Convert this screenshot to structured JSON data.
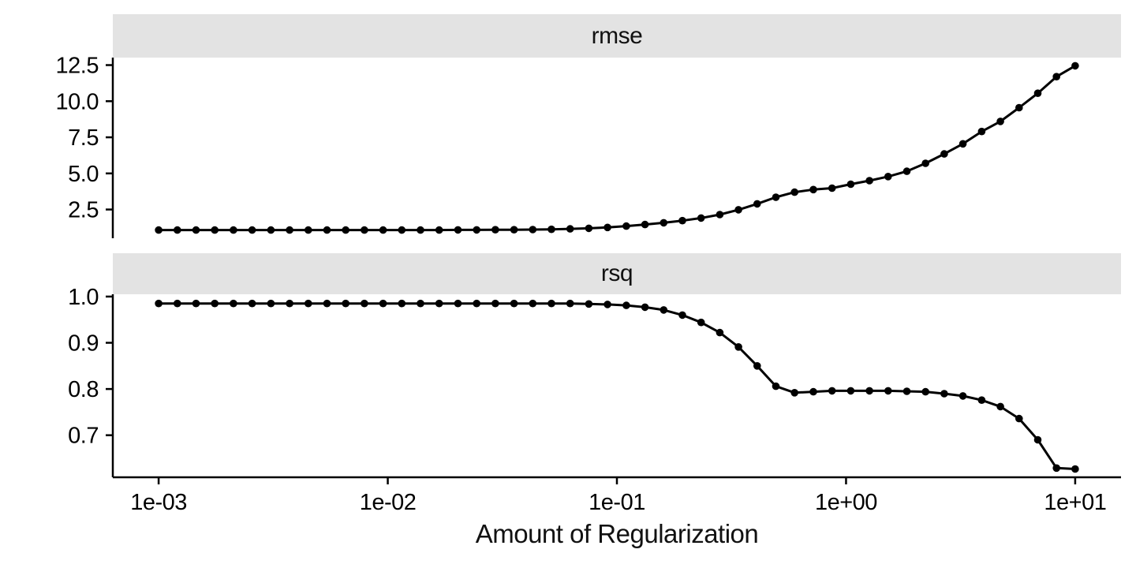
{
  "figure": {
    "background": "#ffffff",
    "strip_bg": "#e3e3e3",
    "geom_color": "#000000",
    "axis_color": "#000000",
    "text_color": "#000000"
  },
  "chart_data": {
    "type": "line",
    "title": "",
    "xlabel": "Amount of Regularization",
    "ylabel": "",
    "grid": false,
    "legend": "none",
    "x_scale": "log10",
    "x_domain_log10": [
      -3.2,
      1.2
    ],
    "x_ticks": [
      {
        "value": 0.001,
        "label": "1e-03"
      },
      {
        "value": 0.01,
        "label": "1e-02"
      },
      {
        "value": 0.1,
        "label": "1e-01"
      },
      {
        "value": 1,
        "label": "1e+00"
      },
      {
        "value": 10,
        "label": "1e+01"
      }
    ],
    "facets": [
      {
        "name": "rmse",
        "ylim": [
          0.51,
          13.02
        ],
        "y_ticks": [
          {
            "value": 2.5,
            "label": "2.5"
          },
          {
            "value": 5,
            "label": "5.0"
          },
          {
            "value": 7.5,
            "label": "7.5"
          },
          {
            "value": 10,
            "label": "10.0"
          },
          {
            "value": 12.5,
            "label": "12.5"
          }
        ]
      },
      {
        "name": "rsq",
        "ylim": [
          0.609,
          1.005
        ],
        "y_ticks": [
          {
            "value": 0.7,
            "label": "0.7"
          },
          {
            "value": 0.8,
            "label": "0.8"
          },
          {
            "value": 0.9,
            "label": "0.9"
          },
          {
            "value": 1.0,
            "label": "1.0"
          }
        ]
      }
    ],
    "x": [
      0.001,
      0.0012068,
      0.0014563,
      0.0017575,
      0.002121,
      0.0025595,
      0.0030888,
      0.0037276,
      0.0044984,
      0.0054287,
      0.0065513,
      0.007906,
      0.009541,
      0.011514,
      0.013895,
      0.016768,
      0.020236,
      0.024421,
      0.029471,
      0.035565,
      0.042919,
      0.051795,
      0.062506,
      0.075431,
      0.09103,
      0.10985,
      0.13257,
      0.15998,
      0.19307,
      0.233,
      0.28118,
      0.33932,
      0.40949,
      0.49417,
      0.59636,
      0.71969,
      0.86851,
      1.0481,
      1.2648,
      1.5264,
      1.8421,
      2.223,
      2.6827,
      3.2375,
      3.9069,
      4.7149,
      5.6899,
      6.8665,
      8.2864,
      10
    ],
    "series": [
      {
        "name": "rmse",
        "values": [
          1.08,
          1.08,
          1.08,
          1.08,
          1.08,
          1.08,
          1.08,
          1.08,
          1.08,
          1.08,
          1.08,
          1.08,
          1.08,
          1.08,
          1.08,
          1.08,
          1.09,
          1.09,
          1.1,
          1.1,
          1.11,
          1.13,
          1.16,
          1.2,
          1.26,
          1.35,
          1.46,
          1.58,
          1.73,
          1.91,
          2.15,
          2.48,
          2.89,
          3.35,
          3.7,
          3.88,
          3.98,
          4.25,
          4.5,
          4.78,
          5.15,
          5.7,
          6.35,
          7.05,
          7.9,
          8.6,
          9.55,
          10.55,
          11.7,
          12.45
        ]
      },
      {
        "name": "rsq",
        "values": [
          0.985,
          0.985,
          0.985,
          0.985,
          0.985,
          0.985,
          0.985,
          0.985,
          0.985,
          0.985,
          0.985,
          0.985,
          0.985,
          0.985,
          0.985,
          0.985,
          0.985,
          0.985,
          0.985,
          0.985,
          0.985,
          0.985,
          0.985,
          0.984,
          0.983,
          0.981,
          0.977,
          0.971,
          0.96,
          0.944,
          0.922,
          0.891,
          0.85,
          0.806,
          0.792,
          0.794,
          0.796,
          0.796,
          0.796,
          0.796,
          0.795,
          0.794,
          0.79,
          0.785,
          0.776,
          0.762,
          0.736,
          0.69,
          0.629,
          0.627
        ]
      }
    ]
  }
}
